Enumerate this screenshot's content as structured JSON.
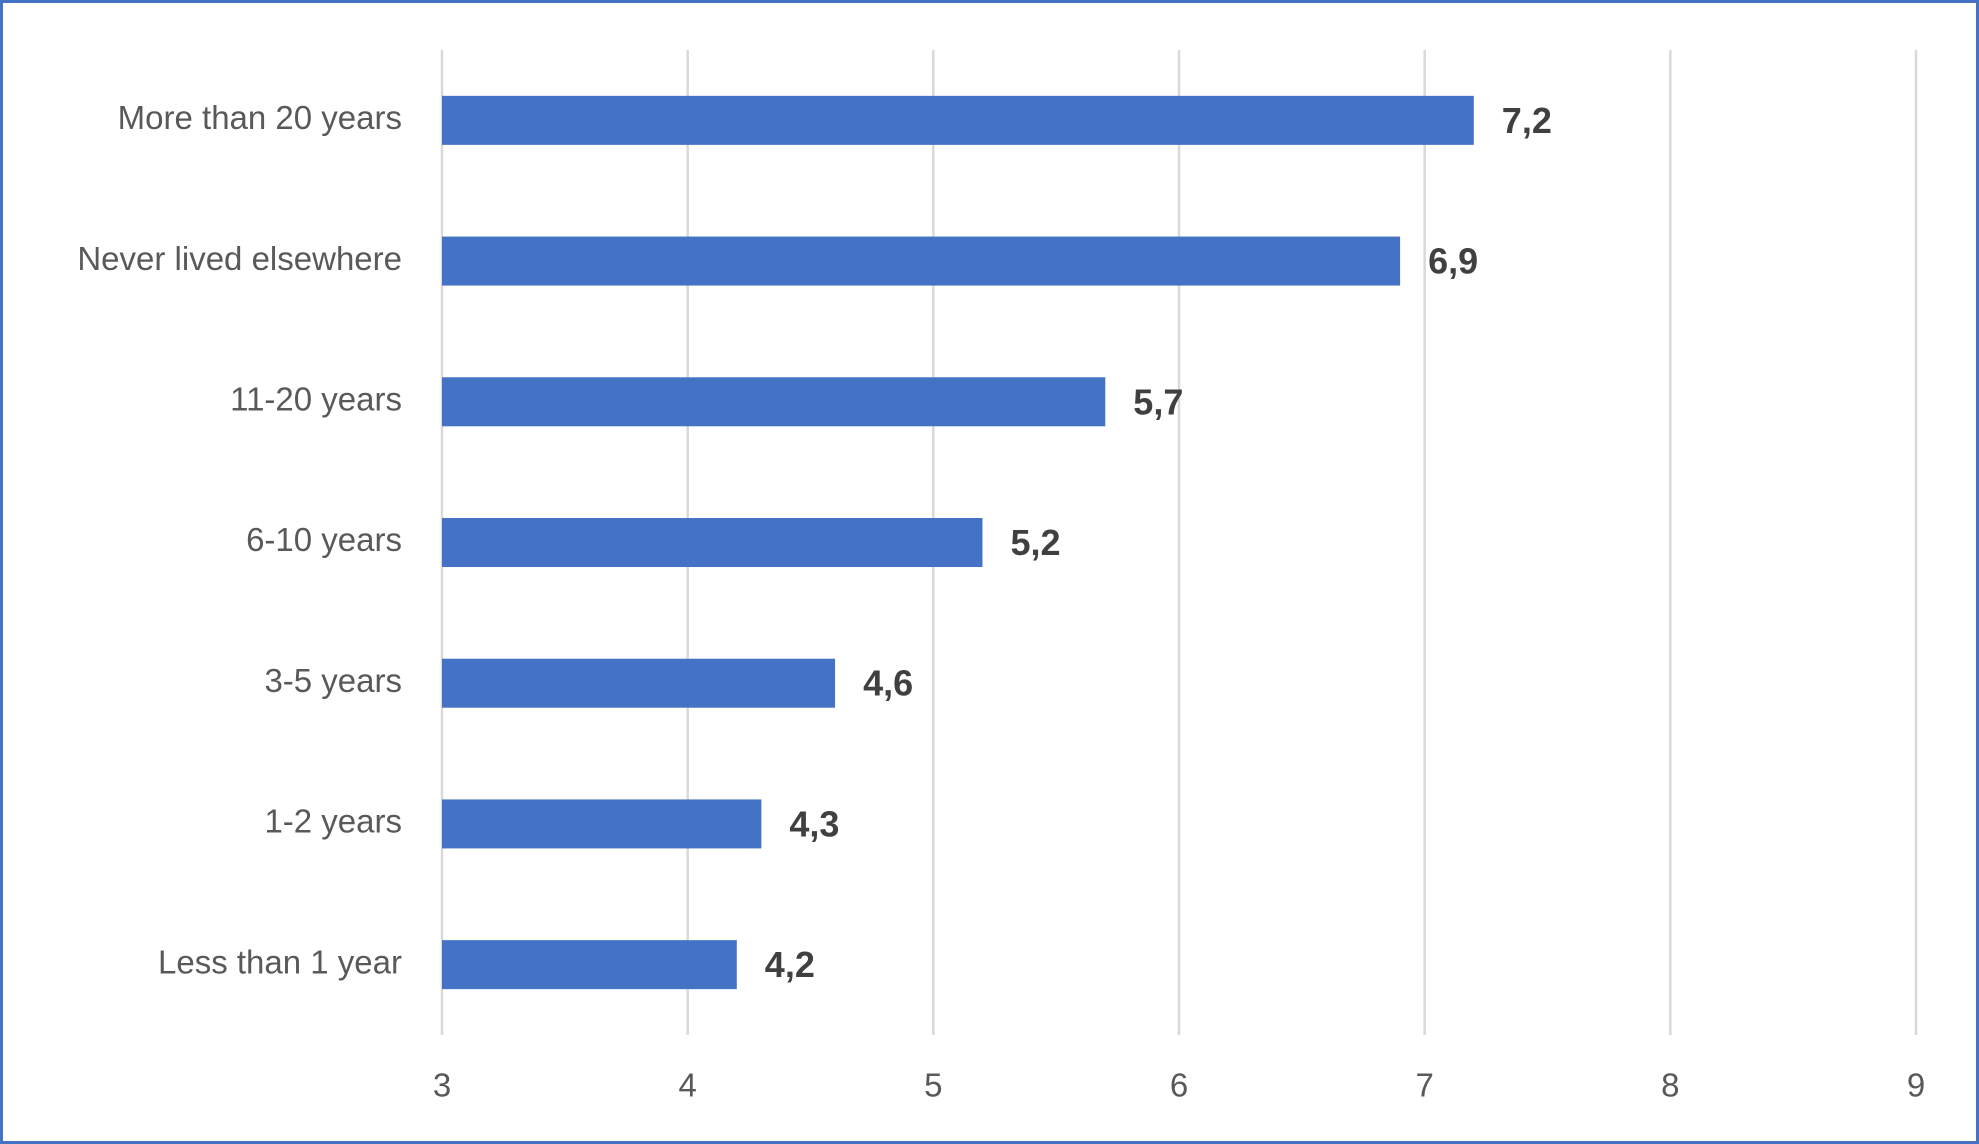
{
  "chart_data": {
    "type": "barh",
    "categories": [
      "More than 20 years",
      "Never lived elsewhere",
      "11-20 years",
      "6-10 years",
      "3-5 years",
      "1-2 years",
      "Less than 1 year"
    ],
    "values": [
      7.2,
      6.9,
      5.7,
      5.2,
      4.6,
      4.3,
      4.2
    ],
    "value_labels": [
      "7,2",
      "6,9",
      "5,7",
      "5,2",
      "4,6",
      "4,3",
      "4,2"
    ],
    "color": "#4472c4",
    "xlim": [
      3,
      9
    ],
    "xticks": [
      3,
      4,
      5,
      6,
      7,
      8,
      9
    ],
    "grid": true
  }
}
